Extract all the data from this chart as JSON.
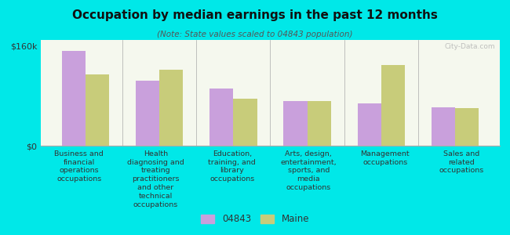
{
  "title": "Occupation by median earnings in the past 12 months",
  "subtitle": "(Note: State values scaled to 04843 population)",
  "categories": [
    "Business and\nfinancial\noperations\noccupations",
    "Health\ndiagnosing and\ntreating\npractitioners\nand other\ntechnical\noccupations",
    "Education,\ntraining, and\nlibrary\noccupations",
    "Arts, design,\nentertainment,\nsports, and\nmedia\noccupations",
    "Management\noccupations",
    "Sales and\nrelated\noccupations"
  ],
  "values_04843": [
    152000,
    105000,
    92000,
    72000,
    68000,
    62000
  ],
  "values_maine": [
    115000,
    122000,
    76000,
    72000,
    130000,
    60000
  ],
  "color_04843": "#c9a0dc",
  "color_maine": "#c8cc7a",
  "ylim": [
    0,
    170000
  ],
  "yticks": [
    0,
    160000
  ],
  "ytick_labels": [
    "$0",
    "$160k"
  ],
  "background_color": "#00e8e8",
  "plot_bg_top": "#f5f8ee",
  "plot_bg_bottom": "#eaf0e0",
  "legend_04843": "04843",
  "legend_maine": "Maine",
  "watermark": "City-Data.com",
  "figsize": [
    6.5,
    3.0
  ],
  "dpi": 100
}
